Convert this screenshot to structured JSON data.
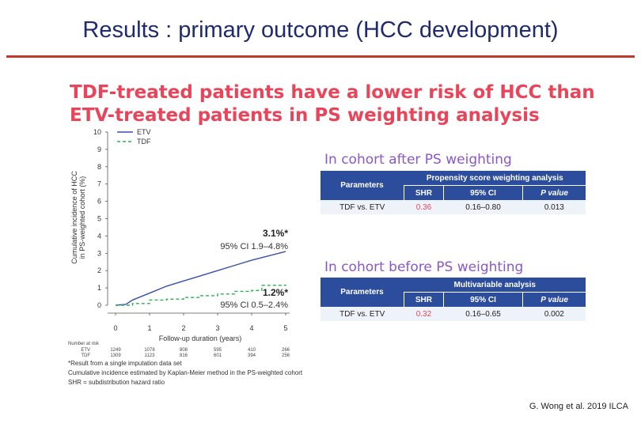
{
  "slide": {
    "title": "Results : primary outcome (HCC development)",
    "headline_line1": "TDF-treated patients have a lower risk of HCC than",
    "headline_line2": "ETV-treated patients in PS weighting analysis",
    "citation": "G. Wong et al. 2019 ILCA",
    "colors": {
      "title": "#1f2b6e",
      "rule": "#c0392b",
      "headline": "#e8455a",
      "table_header": "#2c4d9c",
      "section_title": "#8a57c9"
    }
  },
  "chart_data": {
    "type": "line",
    "ylabel_line1": "Cumulative incidence of HCC",
    "ylabel_line2": "in PS-weighted cohort (%)",
    "xlabel": "Follow-up duration (years)",
    "xlim": [
      0,
      5
    ],
    "ylim": [
      0,
      10
    ],
    "x_ticks": [
      "0",
      "1",
      "2",
      "3",
      "4",
      "5"
    ],
    "y_ticks": [
      "0",
      "1",
      "2",
      "3",
      "4",
      "5",
      "6",
      "7",
      "8",
      "9",
      "10"
    ],
    "series": [
      {
        "name": "ETV",
        "color": "#3a4fa8",
        "style": "solid",
        "x": [
          0,
          0.3,
          0.5,
          1.0,
          1.5,
          2.0,
          2.5,
          3.0,
          3.5,
          4.0,
          4.5,
          5.0
        ],
        "y": [
          0,
          0.05,
          0.3,
          0.7,
          1.1,
          1.4,
          1.7,
          2.0,
          2.3,
          2.6,
          2.85,
          3.1
        ]
      },
      {
        "name": "TDF",
        "color": "#2bb24c",
        "style": "dashed",
        "x": [
          0,
          0.5,
          1.0,
          1.5,
          2.0,
          2.5,
          3.0,
          3.5,
          4.0,
          4.3,
          5.0
        ],
        "y": [
          0,
          0.1,
          0.3,
          0.35,
          0.45,
          0.55,
          0.65,
          0.8,
          0.85,
          1.15,
          1.2
        ]
      }
    ],
    "annotations": {
      "etv_value": "3.1%*",
      "etv_ci": "95% CI 1.9–4.8%",
      "tdf_value": "1.2%*",
      "tdf_ci": "95% CI 0.5–2.4%"
    },
    "number_at_risk": {
      "label": "Number at risk",
      "rows": [
        {
          "group": "ETV",
          "values": [
            "1249",
            "1078",
            "808",
            "595",
            "410",
            "266"
          ]
        },
        {
          "group": "TDF",
          "values": [
            "1309",
            "1123",
            "816",
            "601",
            "394",
            "256"
          ]
        }
      ]
    },
    "footnotes": [
      "*Result from a single imputation data set",
      "Cumulative incidence estimated by Kaplan-Meier method in the PS-weighted cohort",
      "SHR = subdistribution hazard ratio"
    ]
  },
  "table_after": {
    "section_title": "In cohort after PS weighting",
    "parameters_label": "Parameters",
    "group_header": "Propensity score weighting analysis",
    "columns": [
      "SHR",
      "95% CI",
      "P value"
    ],
    "row_label": "TDF vs. ETV",
    "values": [
      "0.36",
      "0.16–0.80",
      "0.013"
    ]
  },
  "table_before": {
    "section_title": "In cohort before PS weighting",
    "parameters_label": "Parameters",
    "group_header": "Multivariable analysis",
    "columns": [
      "SHR",
      "95% CI",
      "P value"
    ],
    "row_label": "TDF vs. ETV",
    "values": [
      "0.32",
      "0.16–0.65",
      "0.002"
    ]
  }
}
